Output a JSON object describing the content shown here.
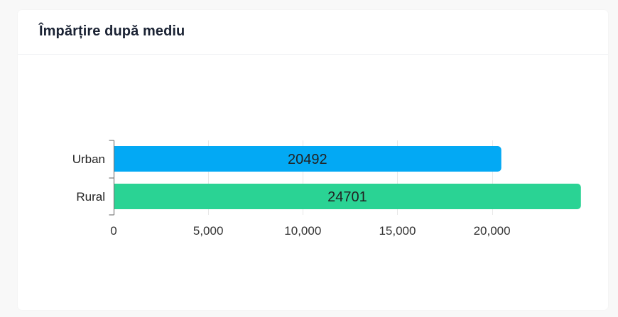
{
  "card": {
    "title": "Împărțire după mediu"
  },
  "colors": {
    "urban": "#03a9f4",
    "rural": "#2ad394",
    "grid": "#e8e8e8",
    "axis": "#7a7a7a"
  },
  "chart_data": {
    "type": "bar",
    "orientation": "horizontal",
    "categories": [
      "Urban",
      "Rural"
    ],
    "values": [
      20492,
      24701
    ],
    "data_labels": [
      "20492",
      "24701"
    ],
    "bar_colors": [
      "#03a9f4",
      "#2ad394"
    ],
    "x_ticks": [
      0,
      5000,
      10000,
      15000,
      20000
    ],
    "x_tick_labels": [
      "0",
      "5,000",
      "10,000",
      "15,000",
      "20,000"
    ],
    "xlim": [
      0,
      24701
    ],
    "grid": true,
    "legend": "none",
    "title": "",
    "xlabel": "",
    "ylabel": ""
  }
}
